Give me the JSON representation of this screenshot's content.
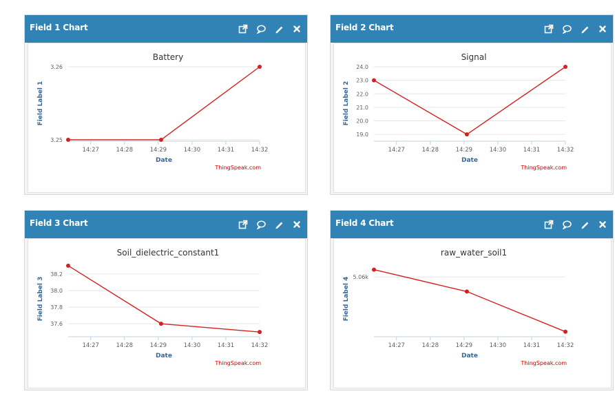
{
  "colors": {
    "header": "#3183b6",
    "line": "#d62020",
    "axis_label": "#3d6591",
    "credits": "#cc0000"
  },
  "header_icons": [
    "external-link-icon",
    "comment-icon",
    "edit-pencil-icon",
    "close-icon"
  ],
  "panels": [
    {
      "title": "Field 1 Chart",
      "chart_data": {
        "type": "line",
        "title": "Battery",
        "xlabel": "Date",
        "ylabel": "Field Label 1",
        "credits": "ThingSpeak.com",
        "xtick_labels": [
          "14:27",
          "14:28",
          "14:29",
          "14:30",
          "14:31",
          "14:32"
        ],
        "ytick_labels": [
          "3.25",
          "3.26"
        ],
        "yticks": [
          3.25,
          3.26
        ],
        "ylim": [
          3.25,
          3.26
        ],
        "series": [
          {
            "x": [
              "14:26:20",
              "14:29:05",
              "14:32:00"
            ],
            "y": [
              3.25,
              3.25,
              3.26
            ]
          }
        ]
      }
    },
    {
      "title": "Field 2 Chart",
      "chart_data": {
        "type": "line",
        "title": "Signal",
        "xlabel": "Date",
        "ylabel": "Field Label 2",
        "credits": "ThingSpeak.com",
        "xtick_labels": [
          "14:27",
          "14:28",
          "14:29",
          "14:30",
          "14:31",
          "14:32"
        ],
        "ytick_labels": [
          "19.0",
          "20.0",
          "21.0",
          "22.0",
          "23.0",
          "24.0"
        ],
        "yticks": [
          19,
          20,
          21,
          22,
          23,
          24
        ],
        "ylim": [
          18.6,
          24.0
        ],
        "series": [
          {
            "x": [
              "14:26:20",
              "14:29:05",
              "14:32:00"
            ],
            "y": [
              23,
              19,
              24
            ]
          }
        ]
      }
    },
    {
      "title": "Field 3 Chart",
      "chart_data": {
        "type": "line",
        "title": "Soil_dielectric_constant1",
        "xlabel": "Date",
        "ylabel": "Field Label 3",
        "credits": "ThingSpeak.com",
        "xtick_labels": [
          "14:27",
          "14:28",
          "14:29",
          "14:30",
          "14:31",
          "14:32"
        ],
        "ytick_labels": [
          "37.6",
          "37.8",
          "38.0",
          "38.2"
        ],
        "yticks": [
          37.6,
          37.8,
          38.0,
          38.2
        ],
        "ylim": [
          37.46,
          38.34
        ],
        "series": [
          {
            "x": [
              "14:26:20",
              "14:29:05",
              "14:32:00"
            ],
            "y": [
              38.3,
              37.6,
              37.5
            ]
          }
        ]
      }
    },
    {
      "title": "Field 4 Chart",
      "chart_data": {
        "type": "line",
        "title": "raw_water_soil1",
        "xlabel": "Date",
        "ylabel": "Field Label 4",
        "credits": "ThingSpeak.com",
        "xtick_labels": [
          "14:27",
          "14:28",
          "14:29",
          "14:30",
          "14:31",
          "14:32"
        ],
        "ytick_labels": [
          "5.06k"
        ],
        "yticks": [
          5060
        ],
        "ylim": [
          5052,
          5062
        ],
        "series": [
          {
            "x": [
              "14:26:20",
              "14:29:05",
              "14:32:00"
            ],
            "y": [
              5061,
              5058,
              5052.5
            ]
          }
        ]
      }
    }
  ]
}
